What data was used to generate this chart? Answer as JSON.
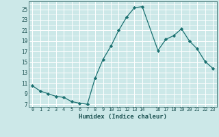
{
  "x": [
    0,
    1,
    2,
    3,
    4,
    5,
    6,
    7,
    8,
    9,
    10,
    11,
    12,
    13,
    14,
    16,
    17,
    18,
    19,
    20,
    21,
    22,
    23
  ],
  "y": [
    10.5,
    9.5,
    9.0,
    8.5,
    8.3,
    7.5,
    7.2,
    7.0,
    12.0,
    15.5,
    18.0,
    21.0,
    23.5,
    25.3,
    25.5,
    17.2,
    19.3,
    20.0,
    21.3,
    19.0,
    17.5,
    15.1,
    13.8
  ],
  "xlabel": "Humidex (Indice chaleur)",
  "xticks": [
    0,
    1,
    2,
    3,
    4,
    5,
    6,
    7,
    8,
    9,
    10,
    11,
    12,
    13,
    14,
    16,
    17,
    18,
    19,
    20,
    21,
    22,
    23
  ],
  "xtick_labels": [
    "0",
    "1",
    "2",
    "3",
    "4",
    "5",
    "6",
    "7",
    "8",
    "9",
    "10",
    "11",
    "12",
    "13",
    "14",
    "16",
    "17",
    "18",
    "19",
    "20",
    "21",
    "22",
    "23"
  ],
  "yticks": [
    7,
    9,
    11,
    13,
    15,
    17,
    19,
    21,
    23,
    25
  ],
  "ylim": [
    6.5,
    26.5
  ],
  "xlim": [
    -0.5,
    23.5
  ],
  "line_color": "#1a7070",
  "marker": "D",
  "marker_size": 2.2,
  "bg_color": "#cce8e8",
  "grid_color": "#ffffff",
  "spine_color": "#336666"
}
